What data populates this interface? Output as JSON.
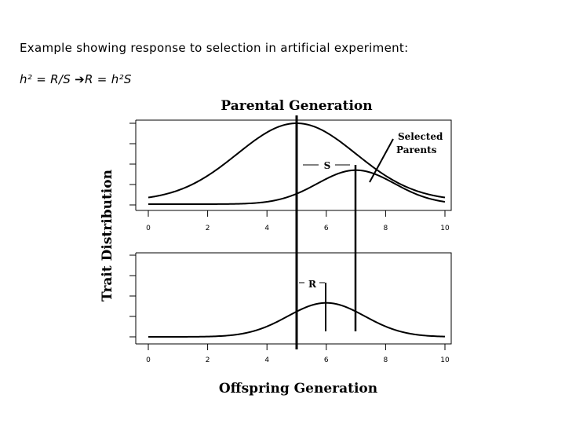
{
  "caption": "Example showing response to selection in artificial experiment:",
  "formula": {
    "left": "h² = R/S ",
    "arrow": "➔",
    "right": "R = h²S"
  },
  "chart_data": [
    {
      "type": "line",
      "title": "Parental Generation",
      "ylabel": "Trait Distribution",
      "xlim": [
        0,
        10
      ],
      "x_ticks": [
        "0",
        "2",
        "4",
        "6",
        "8",
        "10"
      ],
      "series": [
        {
          "name": "parental-population",
          "mean": 5.0,
          "sd": 2.0,
          "peak": 1.0,
          "baseline": 0.04
        },
        {
          "name": "selected-parents",
          "mean": 7.0,
          "sd": 1.3,
          "peak": 0.42,
          "baseline": 0.0
        }
      ],
      "markers": {
        "population_mean": 5,
        "selected_mean": 7
      },
      "annotations": {
        "differential_label": "S",
        "selected_label_line1": "Selected",
        "selected_label_line2": "Parents"
      }
    },
    {
      "type": "line",
      "title": "Offspring Generation",
      "xlim": [
        0,
        10
      ],
      "x_ticks": [
        "0",
        "2",
        "4",
        "6",
        "8",
        "10"
      ],
      "series": [
        {
          "name": "offspring",
          "mean": 6.0,
          "sd": 1.3,
          "peak": 0.42,
          "baseline": 0.0
        }
      ],
      "markers": {
        "offspring_mean": 6
      },
      "annotations": {
        "response_label": "R"
      }
    }
  ]
}
